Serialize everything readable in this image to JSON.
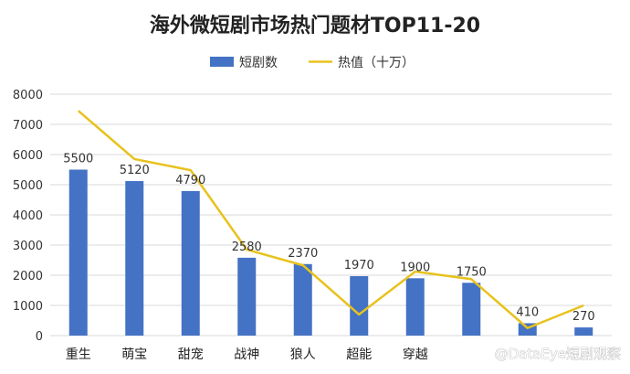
{
  "chart_data": {
    "type": "bar",
    "title": "海外微短剧市场热门题材TOP11-20",
    "categories": [
      "重生",
      "萌宝",
      "甜宠",
      "战神",
      "狼人",
      "超能",
      "穿越",
      "",
      "",
      ""
    ],
    "series": [
      {
        "name": "短剧数",
        "type": "bar",
        "values": [
          5500,
          5120,
          4790,
          2580,
          2370,
          1970,
          1900,
          1750,
          410,
          270
        ],
        "color": "#4472C4"
      },
      {
        "name": "热值（十万）",
        "type": "line",
        "values": [
          7450,
          5850,
          5480,
          2850,
          2330,
          700,
          2120,
          1870,
          250,
          1000
        ],
        "color": "#E8C21E"
      }
    ],
    "data_labels": [
      "5500",
      "5120",
      "4790",
      "2580",
      "2370",
      "1970",
      "1900",
      "1750",
      "410",
      "270"
    ],
    "ylim": [
      0,
      8000
    ],
    "yticks": [
      "0",
      "1000",
      "2000",
      "3000",
      "4000",
      "5000",
      "6000",
      "7000",
      "8000"
    ],
    "grid": true,
    "legend_position": "top"
  },
  "watermark": "@DataEye短剧观察"
}
